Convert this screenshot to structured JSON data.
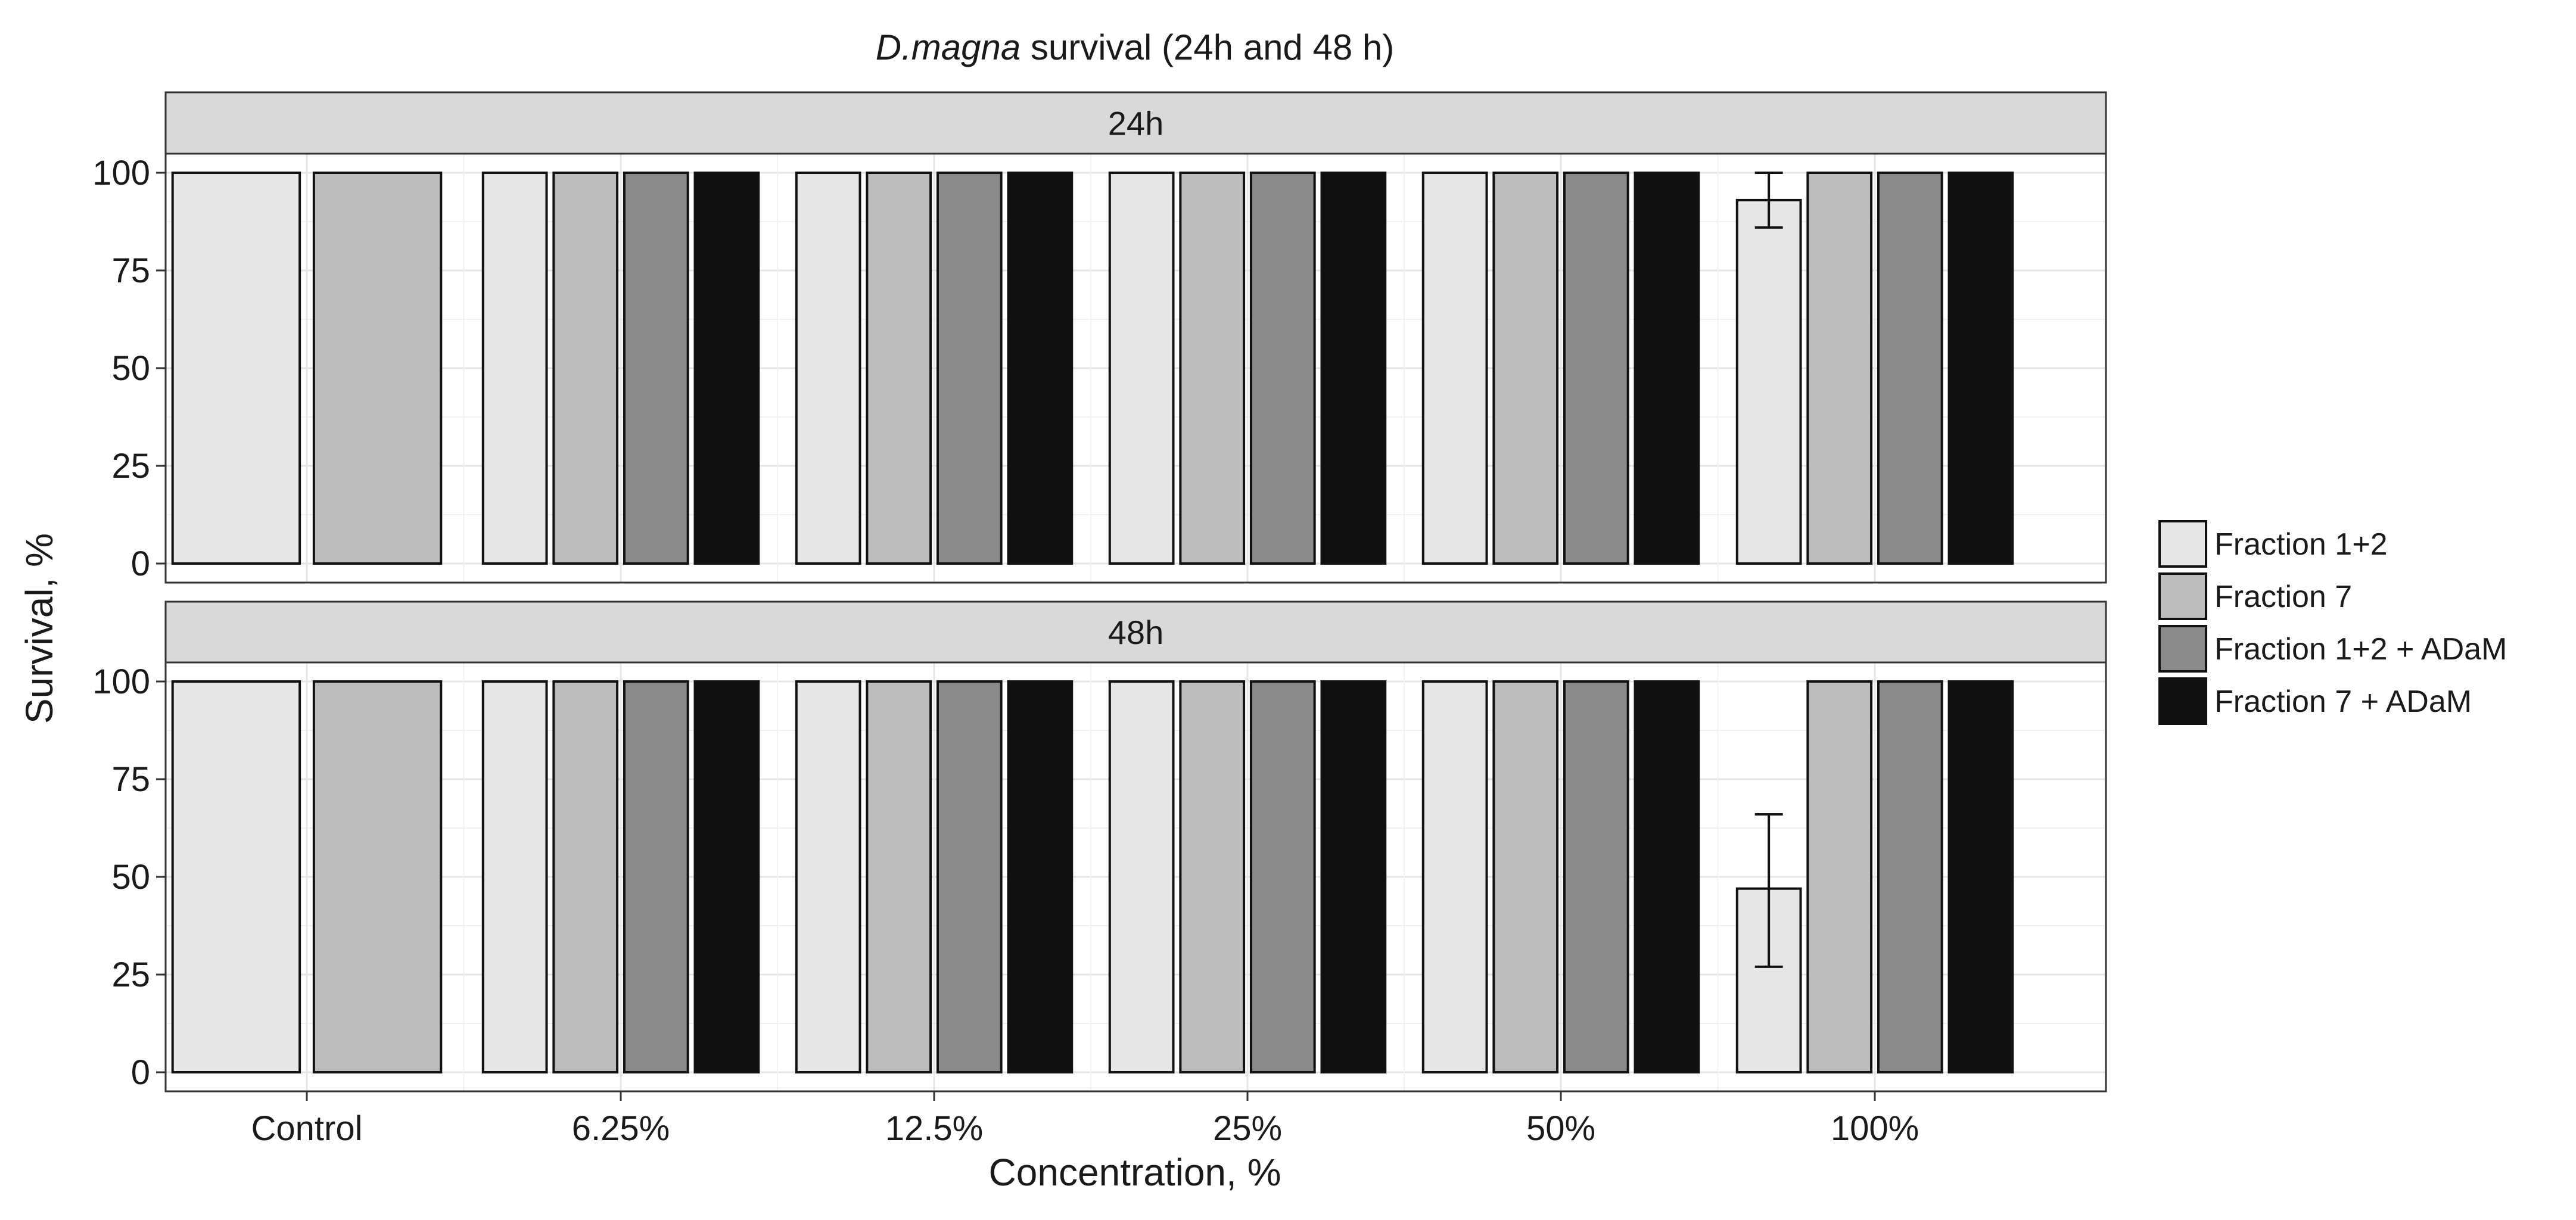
{
  "chart_data": {
    "type": "bar",
    "title": {
      "italic": "D.magna",
      "rest": " survival (24h and 48 h)"
    },
    "xlabel": "Concentration, %",
    "ylabel": "Survival, %",
    "ylim": [
      0,
      100
    ],
    "y_ticks": [
      0,
      25,
      50,
      75,
      100
    ],
    "grid": true,
    "legend_position": "right",
    "categories": [
      "Control",
      "6.25%",
      "12.5%",
      "25%",
      "50%",
      "100%"
    ],
    "series": [
      {
        "name": "Fraction 1+2",
        "color": "#e6e6e6"
      },
      {
        "name": "Fraction 7",
        "color": "#bdbdbd"
      },
      {
        "name": "Fraction 1+2 + ADaM",
        "color": "#8a8a8a"
      },
      {
        "name": "Fraction 7 + ADaM",
        "color": "#111111"
      }
    ],
    "control_series": [
      "Fraction 1+2",
      "Fraction 7"
    ],
    "panels": [
      {
        "label": "24h",
        "values": {
          "Fraction 1+2": [
            100,
            100,
            100,
            100,
            100,
            93
          ],
          "Fraction 7": [
            100,
            100,
            100,
            100,
            100,
            100
          ],
          "Fraction 1+2 + ADaM": [
            null,
            100,
            100,
            100,
            100,
            100
          ],
          "Fraction 7 + ADaM": [
            null,
            100,
            100,
            100,
            100,
            100
          ]
        },
        "error_bars": [
          {
            "category": "100%",
            "series": "Fraction 1+2",
            "low": 86,
            "high": 100
          }
        ]
      },
      {
        "label": "48h",
        "values": {
          "Fraction 1+2": [
            100,
            100,
            100,
            100,
            100,
            47
          ],
          "Fraction 7": [
            100,
            100,
            100,
            100,
            100,
            100
          ],
          "Fraction 1+2 + ADaM": [
            null,
            100,
            100,
            100,
            100,
            100
          ],
          "Fraction 7 + ADaM": [
            null,
            100,
            100,
            100,
            100,
            100
          ]
        },
        "error_bars": [
          {
            "category": "100%",
            "series": "Fraction 1+2",
            "low": 27,
            "high": 66
          }
        ]
      }
    ]
  }
}
